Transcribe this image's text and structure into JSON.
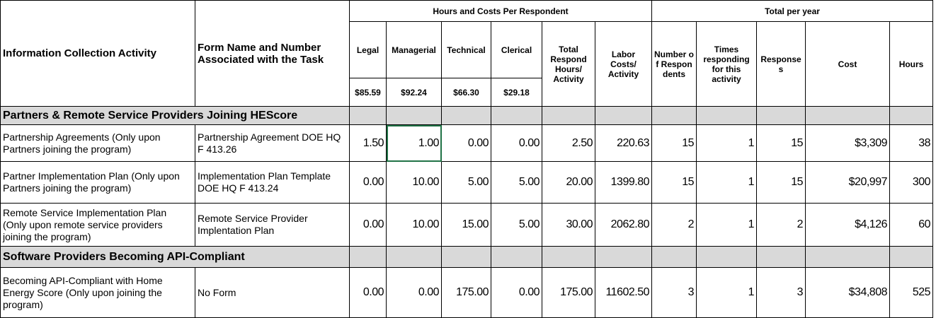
{
  "header": {
    "group_hours": "Hours and Costs Per Respondent",
    "group_total": "Total per year",
    "columns": [
      "Information Collection Activity",
      "Form Name and Number Associated with the Task",
      "Legal",
      "Managerial",
      "Technical",
      "Clerical",
      "Total Respond Hours/ Activity",
      "Labor Costs/ Activity",
      "Number of Respondents",
      "Times responding for this activity",
      "Responses",
      "Cost",
      "Hours"
    ],
    "rates": [
      "$85.59",
      "$92.24",
      "$66.30",
      "$29.18"
    ]
  },
  "sections": [
    {
      "title": "Partners & Remote Service Providers Joining HEScore",
      "rows": [
        [
          "Partnership Agreements (Only upon Partners joining the program)",
          "Partnership Agreement  DOE HQ F 413.26",
          "1.50",
          "1.00",
          "0.00",
          "0.00",
          "2.50",
          "220.63",
          "15",
          "1",
          "15",
          "$3,309",
          "38"
        ],
        [
          "Partner Implementation Plan  (Only upon Partners joining the program)",
          "Implementation Plan Template DOE HQ F 413.24",
          "0.00",
          "10.00",
          "5.00",
          "5.00",
          "20.00",
          "1399.80",
          "15",
          "1",
          "15",
          "$20,997",
          "300"
        ],
        [
          "Remote Service Implementation Plan (Only upon remote service providers joining the program)",
          "Remote Service Provider Implentation Plan",
          "0.00",
          "10.00",
          "15.00",
          "5.00",
          "30.00",
          "2062.80",
          "2",
          "1",
          "2",
          "$4,126",
          "60"
        ]
      ]
    },
    {
      "title": "Software Providers Becoming API-Compliant",
      "rows": [
        [
          "Becoming API-Compliant with Home Energy Score (Only upon joining the program)",
          "No Form",
          "0.00",
          "0.00",
          "175.00",
          "0.00",
          "175.00",
          "11602.50",
          "3",
          "1",
          "3",
          "$34,808",
          "525"
        ]
      ]
    }
  ]
}
